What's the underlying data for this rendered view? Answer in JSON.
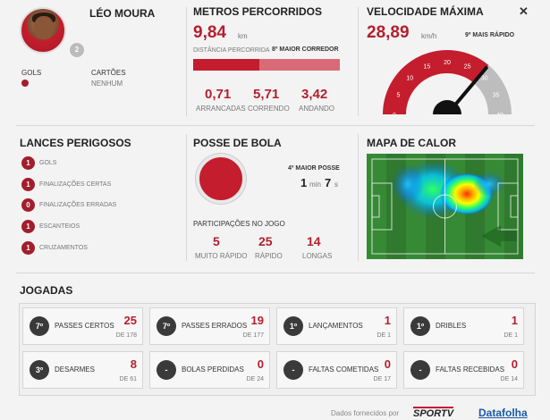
{
  "player": {
    "name": "LÉO MOURA",
    "number": "2",
    "gols_label": "GOLS",
    "cartoes_label": "CARTÕES",
    "cartoes_value": "NENHUM"
  },
  "metros": {
    "title": "METROS PERCORRIDOS",
    "value": "9,84",
    "unit": "km",
    "dist_label": "DISTÂNCIA PERCORRIDA",
    "rank_label": "8º MAIOR CORREDOR",
    "bar_fraction": 0.45,
    "stats": [
      {
        "value": "0,71",
        "label": "ARRANCADAS"
      },
      {
        "value": "5,71",
        "label": "CORRENDO"
      },
      {
        "value": "3,42",
        "label": "ANDANDO"
      }
    ]
  },
  "velocidade": {
    "title": "VELOCIDADE MÁXIMA",
    "value": "28,89",
    "unit": "km/h",
    "rank_label": "9º MAIS RÁPIDO",
    "gauge_ticks": [
      "0",
      "5",
      "10",
      "15",
      "20",
      "25",
      "30",
      "35",
      "40"
    ],
    "gauge_value": 28.89,
    "gauge_max": 40
  },
  "lances": {
    "title": "LANCES PERIGOSOS",
    "items": [
      {
        "count": "1",
        "label": "GOLS"
      },
      {
        "count": "1",
        "label": "FINALIZAÇÕES CERTAS"
      },
      {
        "count": "0",
        "label": "FINALIZAÇÕES ERRADAS"
      },
      {
        "count": "1",
        "label": "ESCANTEIOS"
      },
      {
        "count": "1",
        "label": "CRUZAMENTOS"
      }
    ]
  },
  "posse": {
    "title": "POSSE DE BOLA",
    "rank_label": "4º MAIOR POSSE",
    "min_value": "1",
    "min_unit": "min",
    "sec_value": "7",
    "sec_unit": "s",
    "participacoes_label": "PARTICIPAÇÕES NO JOGO",
    "stats": [
      {
        "value": "5",
        "label": "MUITO RÁPIDO"
      },
      {
        "value": "25",
        "label": "RÁPIDO"
      },
      {
        "value": "14",
        "label": "LONGAS"
      }
    ]
  },
  "mapa": {
    "title": "MAPA DE CALOR"
  },
  "jogadas": {
    "title": "JOGADAS",
    "cards": [
      {
        "badge": "7º",
        "label": "PASSES CERTOS",
        "value": "25",
        "de": "DE 178"
      },
      {
        "badge": "7º",
        "label": "PASSES ERRADOS",
        "value": "19",
        "de": "DE 177"
      },
      {
        "badge": "1º",
        "label": "LANÇAMENTOS",
        "value": "1",
        "de": "DE 1"
      },
      {
        "badge": "1º",
        "label": "DRIBLES",
        "value": "1",
        "de": "DE 1"
      },
      {
        "badge": "3º",
        "label": "DESARMES",
        "value": "8",
        "de": "DE 61"
      },
      {
        "badge": "-",
        "label": "BOLAS PERDIDAS",
        "value": "0",
        "de": "DE 24"
      },
      {
        "badge": "-",
        "label": "FALTAS COMETIDAS",
        "value": "0",
        "de": "DE 17"
      },
      {
        "badge": "-",
        "label": "FALTAS RECEBIDAS",
        "value": "0",
        "de": "DE 14"
      }
    ]
  },
  "footer": {
    "text": "Dados fornecidos por",
    "brand1": "SPORTV",
    "brand2": "Datafolha"
  },
  "colors": {
    "accent": "#b51f2e",
    "gauge_red": "#c41d2d",
    "gauge_grey": "#bdbdbd",
    "pitch": "#2e7d2e"
  },
  "icons": {
    "close": "close-icon"
  }
}
